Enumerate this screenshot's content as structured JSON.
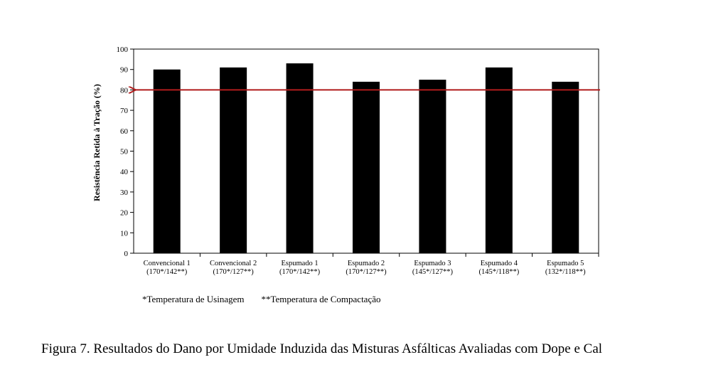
{
  "chart_data": {
    "type": "bar",
    "ylabel": "Resistência Retida à Tração (%)",
    "ylim": [
      0,
      100
    ],
    "yticks": [
      "0",
      "10",
      "20",
      "30",
      "40",
      "50",
      "60",
      "70",
      "80",
      "90",
      "100"
    ],
    "categories": [
      [
        "Convencional 1",
        "(170*/142**)"
      ],
      [
        "Convencional 2",
        "(170*/127**)"
      ],
      [
        "Espumado 1",
        "(170*/142**)"
      ],
      [
        "Espumado 2",
        "(170*/127**)"
      ],
      [
        "Espumado 3",
        "(145*/127**)"
      ],
      [
        "Espumado 4",
        "(145*/118**)"
      ],
      [
        "Espumado 5",
        "(132*/118**)"
      ]
    ],
    "values": [
      90,
      91,
      93,
      84,
      85,
      91,
      84
    ],
    "bar_color": "#000000",
    "reference_line": {
      "value": 80,
      "color": "#b01c1c"
    },
    "grid": false
  },
  "notes": {
    "usinagem": "*Temperatura de Usinagem",
    "compactacao": "**Temperatura de Compactação"
  },
  "caption": "Figura 7. Resultados do Dano por Umidade Induzida das Misturas Asfálticas Avaliadas com Dope e Cal"
}
